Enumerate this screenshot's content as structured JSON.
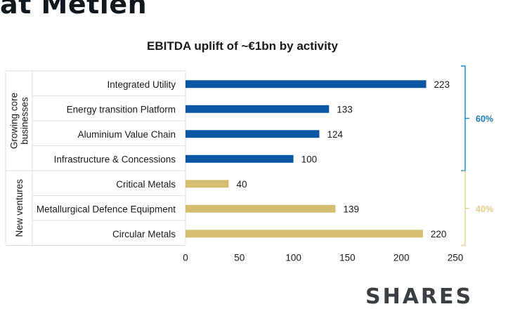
{
  "headline": "at Metlen",
  "footer_text": "SHARES",
  "chart_data": {
    "type": "bar",
    "orientation": "horizontal",
    "title": "EBITDA uplift of ~€1bn by activity",
    "xlabel": "",
    "ylabel": "",
    "xlim": [
      0,
      250
    ],
    "xticks": [
      0,
      50,
      100,
      150,
      200,
      250
    ],
    "grid": false,
    "groups": [
      {
        "label": "Growing core businesses",
        "label_lines": [
          "Growing core",
          "businesses"
        ],
        "share": "60%",
        "color": "#0b57a4",
        "share_color": "#1b79b5",
        "bracket_color": "#1a8fd0",
        "items": [
          {
            "category": "Integrated Utility",
            "value": 223
          },
          {
            "category": "Energy transition Platform",
            "value": 133
          },
          {
            "category": "Aluminium Value Chain",
            "value": 124
          },
          {
            "category": "Infrastructure & Concessions",
            "value": 100
          }
        ]
      },
      {
        "label": "New ventures",
        "label_lines": [
          "New ventures"
        ],
        "share": "40%",
        "color": "#d6be70",
        "share_color": "#e3cc86",
        "bracket_color": "#e8d49a",
        "items": [
          {
            "category": "Critical Metals",
            "value": 40
          },
          {
            "category": "Metallurgical Defence Equipment",
            "value": 139
          },
          {
            "category": "Circular Metals",
            "value": 220
          }
        ]
      }
    ]
  }
}
